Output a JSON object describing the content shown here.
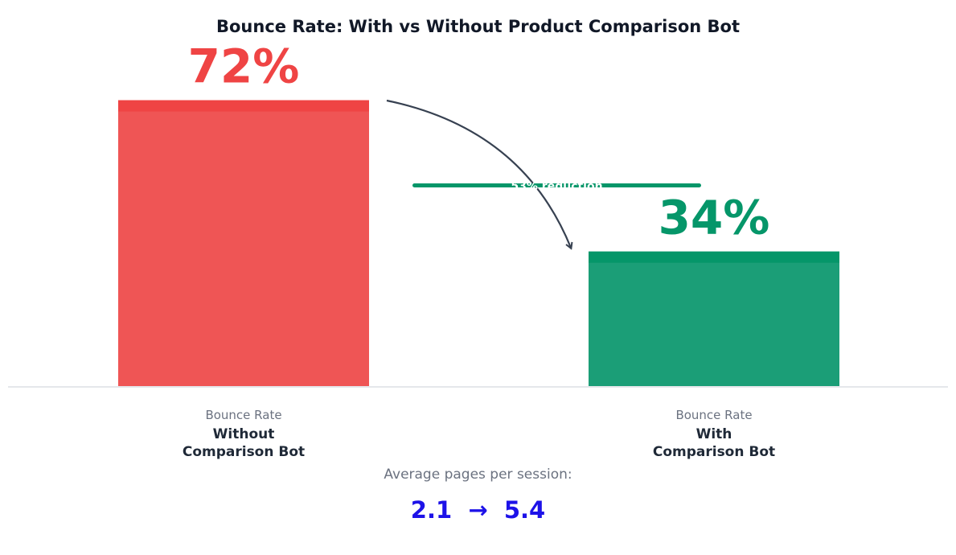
{
  "chart_data": {
    "type": "bar",
    "title": "Bounce Rate: With vs Without Product Comparison Bot",
    "categories": [
      {
        "top": "Bounce Rate",
        "line1": "Without",
        "line2": "Comparison Bot"
      },
      {
        "top": "Bounce Rate",
        "line1": "With",
        "line2": "Comparison Bot"
      }
    ],
    "values": [
      72,
      34
    ],
    "value_labels": [
      "72%",
      "34%"
    ],
    "colors": [
      "#ef5555",
      "#1b9e77"
    ],
    "cap_colors": [
      "#ef4444",
      "#059669"
    ],
    "ylim": [
      0,
      100
    ],
    "grid": false,
    "reduction_label": "53% reduction",
    "reduction_color": "#059669",
    "arrow_color": "#374151"
  },
  "footer": {
    "label": "Average pages per session:",
    "value": "2.1  →  5.4",
    "value_color": "#1d12e8"
  }
}
